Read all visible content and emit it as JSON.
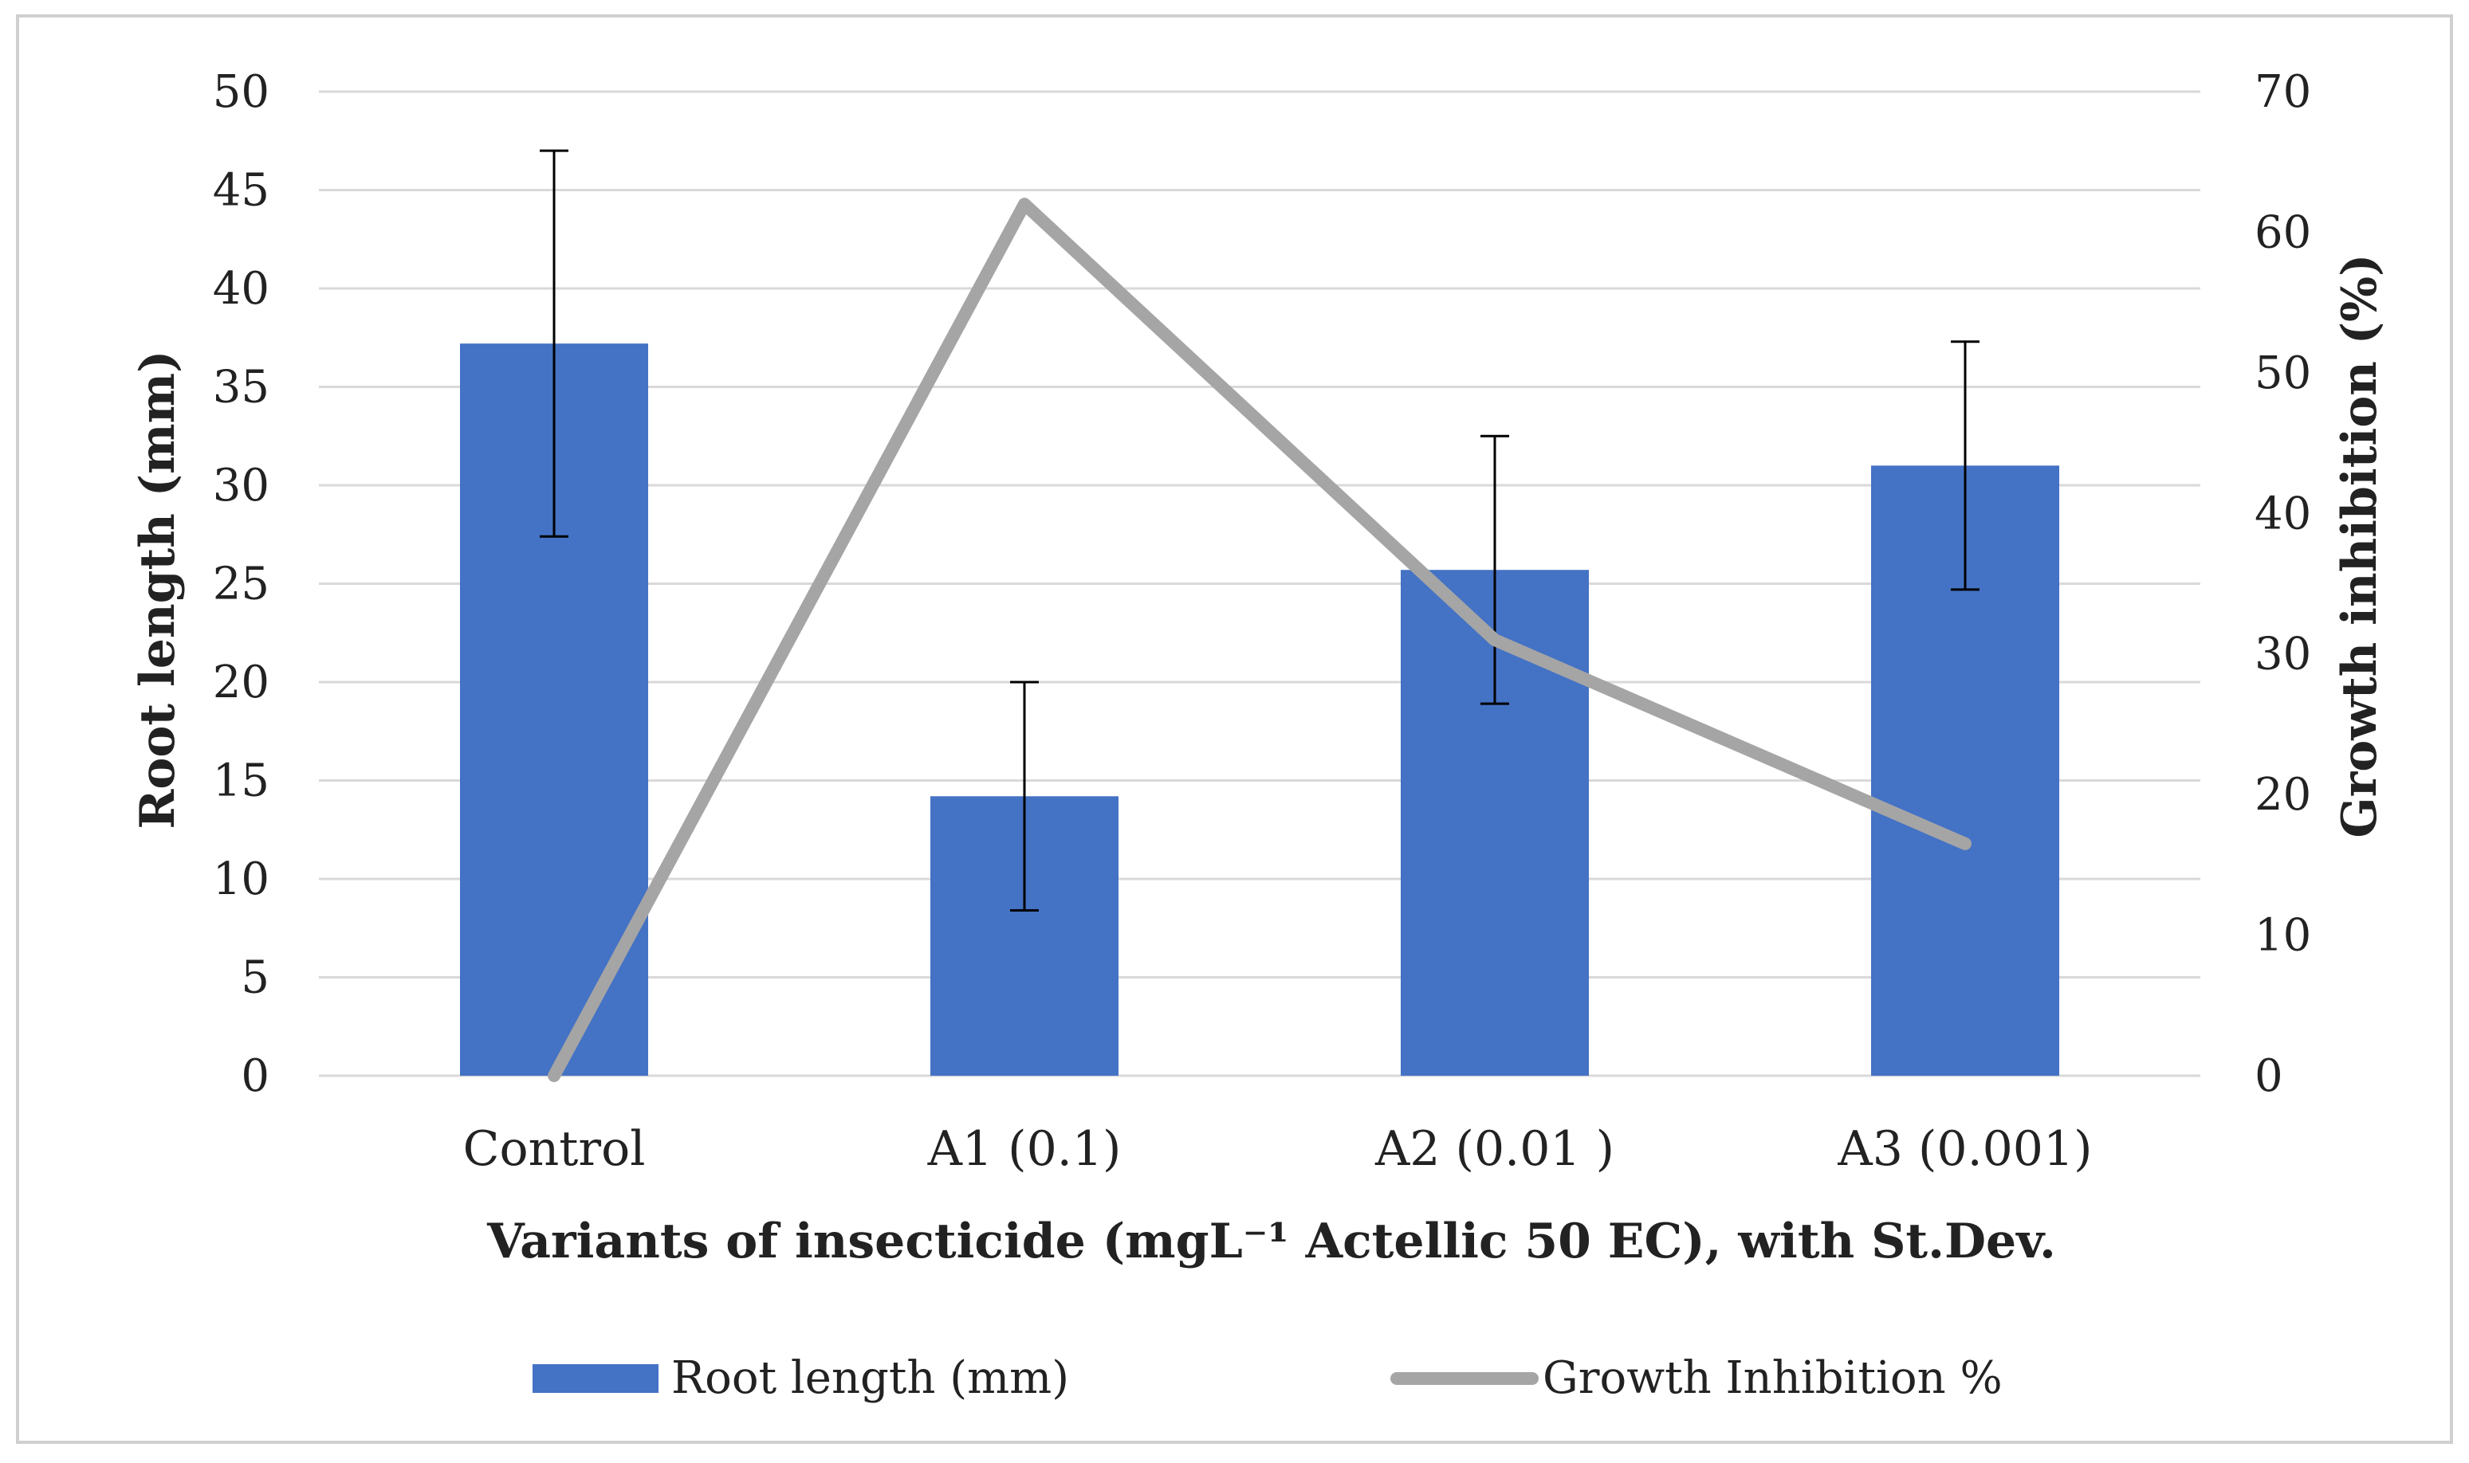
{
  "chart_data": {
    "type": "bar+line",
    "title": "",
    "categories": [
      "Control",
      "A1 (0.1)",
      "A2 (0.01 )",
      "A3 (0.001)"
    ],
    "series": [
      {
        "name": "Root length (mm)",
        "type": "bar",
        "axis": "left",
        "color": "#4472C4",
        "values": [
          37.2,
          14.2,
          25.7,
          31.0
        ],
        "error": [
          9.8,
          5.8,
          6.8,
          6.3
        ]
      },
      {
        "name": "Growth Inhibition %",
        "type": "line",
        "axis": "right",
        "color": "#A5A5A5",
        "values": [
          0,
          62,
          31,
          16.5
        ]
      }
    ],
    "xlabel": "Variants of insecticide (mgL⁻¹ Actellic 50 EC), with St.Dev.",
    "ylabel": "Root length (mm)",
    "y2label": "Growth inhibition  (%)",
    "ylim": [
      0,
      50
    ],
    "ystep": 5,
    "y2lim": [
      0,
      70
    ],
    "y2step": 10,
    "grid": true,
    "legend": "bottom-center"
  }
}
